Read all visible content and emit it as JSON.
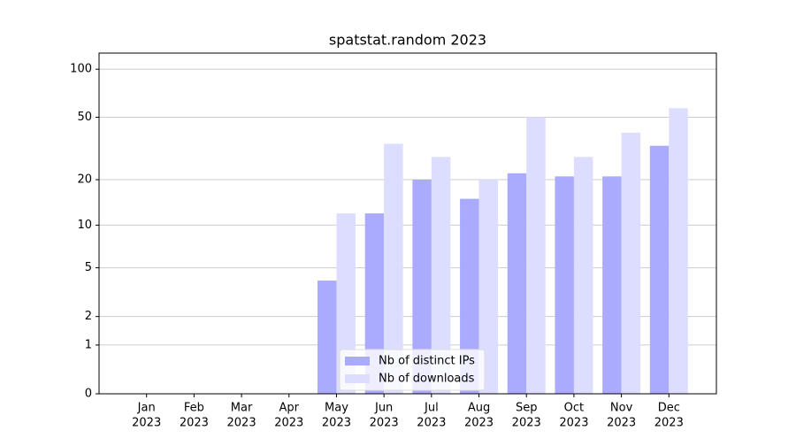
{
  "chart_data": {
    "type": "bar",
    "title": "spatstat.random 2023",
    "categories": [
      [
        "Jan",
        "2023"
      ],
      [
        "Feb",
        "2023"
      ],
      [
        "Mar",
        "2023"
      ],
      [
        "Apr",
        "2023"
      ],
      [
        "May",
        "2023"
      ],
      [
        "Jun",
        "2023"
      ],
      [
        "Jul",
        "2023"
      ],
      [
        "Aug",
        "2023"
      ],
      [
        "Sep",
        "2023"
      ],
      [
        "Oct",
        "2023"
      ],
      [
        "Nov",
        "2023"
      ],
      [
        "Dec",
        "2023"
      ]
    ],
    "series": [
      {
        "name": "Nb of distinct IPs",
        "color": "#aaaaff",
        "values": [
          0,
          0,
          0,
          0,
          4,
          12,
          20,
          15,
          22,
          21,
          21,
          33
        ]
      },
      {
        "name": "Nb of downloads",
        "color": "#ddddff",
        "values": [
          0,
          0,
          0,
          0,
          12,
          34,
          28,
          20,
          50,
          28,
          40,
          57
        ]
      }
    ],
    "yscale": "log1p",
    "ylim": [
      0,
      126
    ],
    "yticks": [
      0,
      1,
      2,
      5,
      10,
      20,
      50,
      100
    ],
    "grid": true,
    "legend": "lower center"
  }
}
